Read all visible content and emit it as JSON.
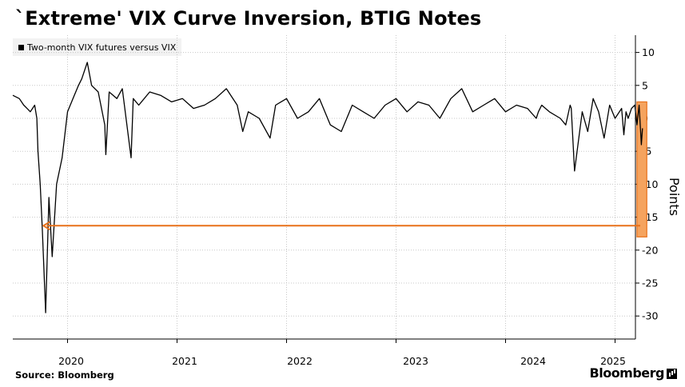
{
  "chart_data": {
    "type": "line",
    "title": "`Extreme' VIX Curve Inversion, BTIG Notes",
    "legend": [
      "Two-month VIX futures versus VIX"
    ],
    "xlabel": "",
    "ylabel": "Points",
    "x_ticks": [
      "2020",
      "2021",
      "2022",
      "2023",
      "2024",
      "2025"
    ],
    "y_ticks": [
      10,
      5,
      0,
      -5,
      -10,
      -15,
      -20,
      -25,
      -30
    ],
    "ylim": [
      -33,
      12.5
    ],
    "xlim": [
      2019.5,
      2025.27
    ],
    "grid": "horizontal dotted",
    "series": [
      {
        "name": "Two-month VIX futures versus VIX",
        "x": [
          2019.5,
          2019.56,
          2019.6,
          2019.63,
          2019.66,
          2019.68,
          2019.7,
          2019.72,
          2019.73,
          2019.75,
          2019.77,
          2019.8,
          2019.83,
          2019.86,
          2019.9,
          2019.95,
          2020.0,
          2020.05,
          2020.1,
          2020.13,
          2020.18,
          2020.22,
          2020.28,
          2020.34,
          2020.35,
          2020.38,
          2020.45,
          2020.5,
          2020.58,
          2020.6,
          2020.65,
          2020.75,
          2020.85,
          2020.95,
          2021.05,
          2021.15,
          2021.25,
          2021.35,
          2021.45,
          2021.55,
          2021.6,
          2021.65,
          2021.75,
          2021.85,
          2021.9,
          2022.0,
          2022.1,
          2022.2,
          2022.3,
          2022.4,
          2022.5,
          2022.6,
          2022.7,
          2022.8,
          2022.9,
          2023.0,
          2023.1,
          2023.2,
          2023.3,
          2023.4,
          2023.5,
          2023.6,
          2023.7,
          2023.8,
          2023.9,
          2024.0,
          2024.1,
          2024.2,
          2024.28,
          2024.3,
          2024.33,
          2024.4,
          2024.5,
          2024.55,
          2024.59,
          2024.6,
          2024.63,
          2024.7,
          2024.75,
          2024.8,
          2024.85,
          2024.9,
          2024.95,
          2025.0,
          2025.06,
          2025.08,
          2025.1,
          2025.12,
          2025.15,
          2025.18,
          2025.2,
          2025.22,
          2025.24,
          2025.25
        ],
        "values": [
          3.5,
          3,
          2,
          1.5,
          1,
          1.5,
          2,
          0,
          -5,
          -10,
          -17,
          -29.5,
          -12,
          -21,
          -10,
          -6,
          1,
          3,
          5,
          6,
          8.5,
          5,
          4,
          -1,
          -5.5,
          4,
          3,
          4.5,
          -6,
          3,
          2,
          4,
          3.5,
          2.5,
          3,
          1.5,
          2,
          3,
          4.5,
          2,
          -2,
          1,
          0,
          -3,
          2,
          3,
          0,
          1,
          3,
          -1,
          -2,
          2,
          1,
          0,
          2,
          3,
          1,
          2.5,
          2,
          0,
          3,
          4.5,
          1,
          2,
          3,
          1,
          2,
          1.5,
          0,
          1,
          2,
          1,
          0,
          -1,
          2,
          1.5,
          -8,
          1,
          -2,
          3,
          1,
          -3,
          2,
          0,
          1.5,
          -2.5,
          1,
          0,
          1.5,
          2,
          -1,
          2,
          -4,
          -1.5
        ]
      }
    ],
    "annotations": [
      {
        "type": "arrow",
        "description": "orange arrow pointing left",
        "y_value": -16.3,
        "x_from": 2025.23,
        "x_to": 2019.78
      },
      {
        "type": "highlight-box",
        "description": "orange box",
        "x_range": [
          2025.2,
          2025.29
        ],
        "y_range": [
          -18,
          2.5
        ]
      }
    ],
    "colors": {
      "line": "#000000",
      "highlight": "#f5a35e",
      "highlight_border": "#e8711a"
    }
  },
  "source": "Source: Bloomberg",
  "brand": "Bloomberg"
}
